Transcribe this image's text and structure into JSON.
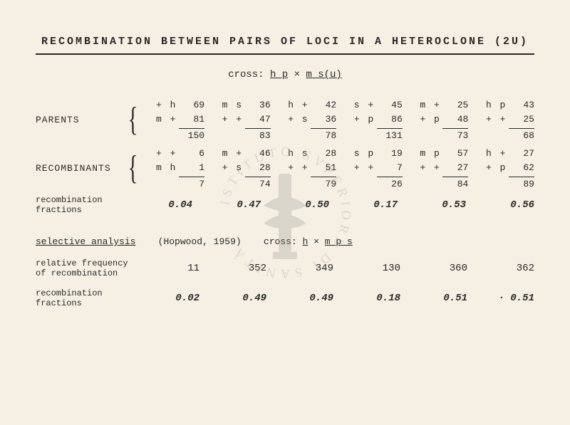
{
  "title": "RECOMBINATION BETWEEN PAIRS OF LOCI IN A HETEROCLONE (2U)",
  "cross_label": "cross:",
  "cross_lhs": "h p",
  "cross_op": "×",
  "cross_rhs": "m s(u)",
  "labels": {
    "parents": "PARENTS",
    "recombinants": "RECOMBINANTS",
    "recomb_fractions": "recombination\nfractions",
    "selective_analysis": "selective analysis",
    "hopwood": "(Hopwood, 1959)",
    "cross2_label": "cross:",
    "cross2_lhs": "h",
    "cross2_op": "×",
    "cross2_rhs": "m p s",
    "rel_freq": "relative frequency\nof recombination",
    "recomb_fractions2": "recombination\nfractions"
  },
  "columns": [
    {
      "parents": [
        {
          "geno": "+ h",
          "n": "69"
        },
        {
          "geno": "m +",
          "n": "81"
        }
      ],
      "parents_sum": "150",
      "recombinants": [
        {
          "geno": "+ +",
          "n": "6"
        },
        {
          "geno": "m h",
          "n": "1"
        }
      ],
      "recombinants_sum": "7",
      "fraction": "0.04",
      "rel_freq": "11",
      "fraction2": "0.02"
    },
    {
      "parents": [
        {
          "geno": "m s",
          "n": "36"
        },
        {
          "geno": "+ +",
          "n": "47"
        }
      ],
      "parents_sum": "83",
      "recombinants": [
        {
          "geno": "m +",
          "n": "46"
        },
        {
          "geno": "+ s",
          "n": "28"
        }
      ],
      "recombinants_sum": "74",
      "fraction": "0.47",
      "rel_freq": "352",
      "fraction2": "0.49"
    },
    {
      "parents": [
        {
          "geno": "h +",
          "n": "42"
        },
        {
          "geno": "+ s",
          "n": "36"
        }
      ],
      "parents_sum": "78",
      "recombinants": [
        {
          "geno": "h s",
          "n": "28"
        },
        {
          "geno": "+ +",
          "n": "51"
        }
      ],
      "recombinants_sum": "79",
      "fraction": "0.50",
      "rel_freq": "349",
      "fraction2": "0.49"
    },
    {
      "parents": [
        {
          "geno": "s +",
          "n": "45"
        },
        {
          "geno": "+ p",
          "n": "86"
        }
      ],
      "parents_sum": "131",
      "recombinants": [
        {
          "geno": "s p",
          "n": "19"
        },
        {
          "geno": "+ +",
          "n": "7"
        }
      ],
      "recombinants_sum": "26",
      "fraction": "0.17",
      "rel_freq": "130",
      "fraction2": "0.18"
    },
    {
      "parents": [
        {
          "geno": "m +",
          "n": "25"
        },
        {
          "geno": "+ p",
          "n": "48"
        }
      ],
      "parents_sum": "73",
      "recombinants": [
        {
          "geno": "m p",
          "n": "57"
        },
        {
          "geno": "+ +",
          "n": "27"
        }
      ],
      "recombinants_sum": "84",
      "fraction": "0.53",
      "rel_freq": "360",
      "fraction2": "0.51"
    },
    {
      "parents": [
        {
          "geno": "h p",
          "n": "43"
        },
        {
          "geno": "+ +",
          "n": "25"
        }
      ],
      "parents_sum": "68",
      "recombinants": [
        {
          "geno": "h +",
          "n": "27"
        },
        {
          "geno": "+ p",
          "n": "62"
        }
      ],
      "recombinants_sum": "89",
      "fraction": "0.56",
      "rel_freq": "362",
      "fraction2": "· 0.51"
    }
  ]
}
